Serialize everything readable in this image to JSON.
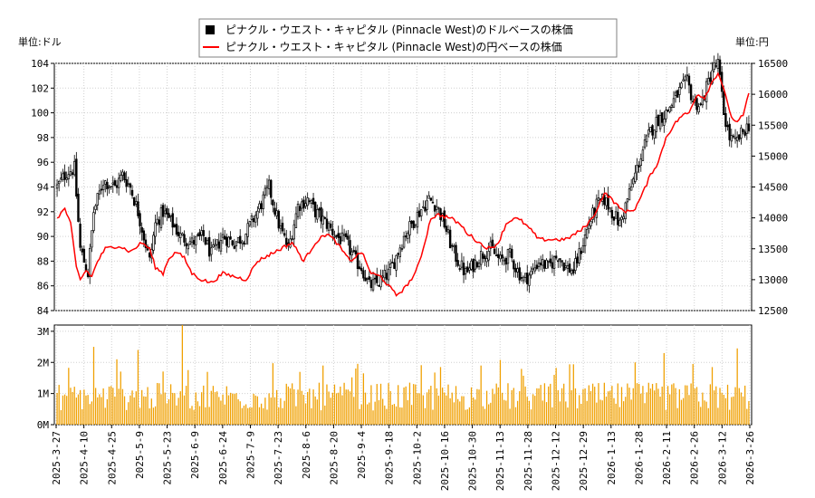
{
  "chart_data": {
    "type": "candlestick+line+bar",
    "legend": {
      "usd_series": "ピナクル・ウエスト・キャピタル (Pinnacle West)のドルベースの株価",
      "jpy_series": "ピナクル・ウエスト・キャピタル (Pinnacle West)の円ベースの株価"
    },
    "left_unit": "単位:ドル",
    "right_unit": "単位:円",
    "left_axis": {
      "min": 84,
      "max": 104,
      "ticks": [
        "84",
        "86",
        "88",
        "90",
        "92",
        "94",
        "96",
        "98",
        "100",
        "102",
        "104"
      ]
    },
    "right_axis": {
      "min": 12500,
      "max": 16500,
      "ticks": [
        "12500",
        "13000",
        "13500",
        "14000",
        "14500",
        "15000",
        "15500",
        "16000",
        "16500"
      ]
    },
    "volume_axis": {
      "min": 0,
      "max": 3.2,
      "ticks": [
        "0M",
        "1M",
        "2M",
        "3M"
      ]
    },
    "x_labels": [
      "2025-3-27",
      "2025-4-10",
      "2025-4-25",
      "2025-5-9",
      "2025-5-23",
      "2025-6-9",
      "2025-6-24",
      "2025-7-9",
      "2025-7-23",
      "2025-8-6",
      "2025-8-20",
      "2025-9-4",
      "2025-9-18",
      "2025-10-2",
      "2025-10-16",
      "2025-10-30",
      "2025-11-13",
      "2025-11-28",
      "2025-12-12",
      "2025-12-29",
      "2026-1-13",
      "2026-1-28",
      "2026-2-11",
      "2026-2-26",
      "2026-3-12",
      "2026-3-26"
    ],
    "price_keyframes": [
      [
        0,
        94
      ],
      [
        5,
        95.2
      ],
      [
        9,
        95.5
      ],
      [
        12,
        89
      ],
      [
        16,
        87
      ],
      [
        19,
        92
      ],
      [
        24,
        94.5
      ],
      [
        30,
        94
      ],
      [
        34,
        95
      ],
      [
        38,
        94
      ],
      [
        42,
        92
      ],
      [
        45,
        90
      ],
      [
        48,
        88
      ],
      [
        51,
        91
      ],
      [
        55,
        92
      ],
      [
        60,
        91
      ],
      [
        64,
        90
      ],
      [
        70,
        89.5
      ],
      [
        76,
        90
      ],
      [
        80,
        88.5
      ],
      [
        86,
        90
      ],
      [
        92,
        89.5
      ],
      [
        97,
        90
      ],
      [
        104,
        92
      ],
      [
        110,
        94
      ],
      [
        115,
        91
      ],
      [
        120,
        89
      ],
      [
        125,
        92.5
      ],
      [
        130,
        93
      ],
      [
        134,
        92
      ],
      [
        140,
        91
      ],
      [
        145,
        90
      ],
      [
        150,
        89.5
      ],
      [
        155,
        88
      ],
      [
        158,
        87.5
      ],
      [
        162,
        86
      ],
      [
        166,
        86.2
      ],
      [
        172,
        87
      ],
      [
        175,
        88
      ],
      [
        180,
        90
      ],
      [
        184,
        91
      ],
      [
        188,
        92
      ],
      [
        193,
        93
      ],
      [
        197,
        92.5
      ],
      [
        201,
        91
      ],
      [
        205,
        89
      ],
      [
        208,
        88
      ],
      [
        212,
        87
      ],
      [
        215,
        87.5
      ],
      [
        220,
        88.5
      ],
      [
        225,
        89
      ],
      [
        230,
        88
      ],
      [
        235,
        88.5
      ],
      [
        238,
        87.5
      ],
      [
        242,
        86.5
      ],
      [
        246,
        87
      ],
      [
        250,
        88
      ],
      [
        255,
        87.5
      ],
      [
        260,
        88.5
      ],
      [
        264,
        87.5
      ],
      [
        268,
        87.2
      ],
      [
        272,
        89
      ],
      [
        276,
        91
      ],
      [
        280,
        92.5
      ],
      [
        284,
        93
      ],
      [
        288,
        92
      ],
      [
        292,
        91
      ],
      [
        296,
        93
      ],
      [
        300,
        95
      ],
      [
        304,
        97
      ],
      [
        308,
        98.5
      ],
      [
        312,
        99.5
      ],
      [
        316,
        100
      ],
      [
        320,
        101
      ],
      [
        324,
        102
      ],
      [
        327,
        102.5
      ],
      [
        330,
        101
      ],
      [
        334,
        100.5
      ],
      [
        337,
        102
      ],
      [
        340,
        103.5
      ],
      [
        343,
        104
      ],
      [
        346,
        100
      ],
      [
        349,
        98
      ],
      [
        352,
        97.5
      ],
      [
        356,
        98.5
      ],
      [
        359,
        99
      ]
    ],
    "jpy_keyframes": [
      [
        0,
        14000
      ],
      [
        4,
        14150
      ],
      [
        7,
        13900
      ],
      [
        10,
        13200
      ],
      [
        12,
        13000
      ],
      [
        15,
        13150
      ],
      [
        18,
        13050
      ],
      [
        21,
        13300
      ],
      [
        25,
        13500
      ],
      [
        32,
        13550
      ],
      [
        38,
        13450
      ],
      [
        44,
        13600
      ],
      [
        48,
        13500
      ],
      [
        51,
        13200
      ],
      [
        55,
        13100
      ],
      [
        58,
        13350
      ],
      [
        62,
        13450
      ],
      [
        66,
        13350
      ],
      [
        70,
        13100
      ],
      [
        75,
        13000
      ],
      [
        80,
        12950
      ],
      [
        86,
        13100
      ],
      [
        92,
        13050
      ],
      [
        98,
        13000
      ],
      [
        104,
        13300
      ],
      [
        110,
        13400
      ],
      [
        116,
        13500
      ],
      [
        122,
        13600
      ],
      [
        128,
        13300
      ],
      [
        134,
        13600
      ],
      [
        140,
        13750
      ],
      [
        145,
        13600
      ],
      [
        152,
        13300
      ],
      [
        158,
        13450
      ],
      [
        163,
        13100
      ],
      [
        168,
        13050
      ],
      [
        172,
        12900
      ],
      [
        176,
        12750
      ],
      [
        180,
        12850
      ],
      [
        186,
        13100
      ],
      [
        190,
        13500
      ],
      [
        194,
        14000
      ],
      [
        198,
        14050
      ],
      [
        204,
        14000
      ],
      [
        209,
        13900
      ],
      [
        213,
        13750
      ],
      [
        217,
        13650
      ],
      [
        221,
        13550
      ],
      [
        225,
        13500
      ],
      [
        229,
        13600
      ],
      [
        233,
        13900
      ],
      [
        237,
        14000
      ],
      [
        241,
        13950
      ],
      [
        246,
        13800
      ],
      [
        250,
        13650
      ],
      [
        256,
        13650
      ],
      [
        264,
        13650
      ],
      [
        272,
        13800
      ],
      [
        278,
        14000
      ],
      [
        284,
        14400
      ],
      [
        288,
        14300
      ],
      [
        292,
        14150
      ],
      [
        296,
        14100
      ],
      [
        300,
        14150
      ],
      [
        304,
        14400
      ],
      [
        308,
        14700
      ],
      [
        312,
        14900
      ],
      [
        316,
        15300
      ],
      [
        320,
        15500
      ],
      [
        324,
        15650
      ],
      [
        328,
        15700
      ],
      [
        332,
        16000
      ],
      [
        336,
        15950
      ],
      [
        340,
        16200
      ],
      [
        343,
        16350
      ],
      [
        346,
        16100
      ],
      [
        349,
        15700
      ],
      [
        352,
        15550
      ],
      [
        356,
        15650
      ],
      [
        359,
        16000
      ]
    ],
    "volume_spikes": [
      [
        65,
        3.2
      ],
      [
        19,
        2.5
      ],
      [
        31,
        2.1
      ],
      [
        42,
        2.4
      ],
      [
        138,
        1.9
      ],
      [
        199,
        1.85
      ],
      [
        220,
        1.9
      ],
      [
        258,
        1.6
      ],
      [
        315,
        2.3
      ],
      [
        330,
        1.95
      ],
      [
        340,
        1.85
      ],
      [
        353,
        2.45
      ]
    ]
  }
}
